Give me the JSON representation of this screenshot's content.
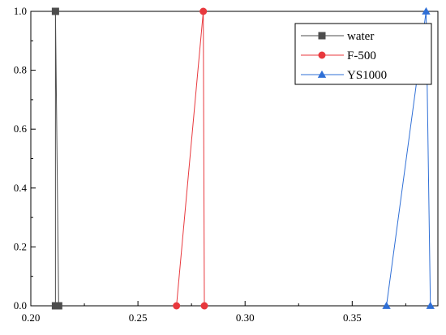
{
  "chart_data": {
    "type": "line",
    "title": "",
    "xlabel": "",
    "ylabel": "",
    "xlim": [
      0.2,
      0.39
    ],
    "ylim": [
      0.0,
      1.0
    ],
    "xticks": [
      0.2,
      0.25,
      0.3,
      0.35
    ],
    "yticks": [
      0.0,
      0.2,
      0.4,
      0.6,
      0.8,
      1.0
    ],
    "xtick_labels": [
      "0.20",
      "0.25",
      "0.30",
      "0.35"
    ],
    "ytick_labels": [
      "0.0",
      "0.2",
      "0.4",
      "0.6",
      "0.8",
      "1.0"
    ],
    "grid": false,
    "legend_position": "top-right",
    "series": [
      {
        "name": "water",
        "color": "#4d4d4d",
        "marker": "square",
        "points": [
          [
            0.2115,
            0.0
          ],
          [
            0.2115,
            1.0
          ],
          [
            0.213,
            0.0
          ]
        ]
      },
      {
        "name": "F-500",
        "color": "#e8383d",
        "marker": "circle",
        "points": [
          [
            0.268,
            0.0
          ],
          [
            0.2805,
            1.0
          ],
          [
            0.281,
            0.0
          ]
        ]
      },
      {
        "name": "YS1000",
        "color": "#2f6fd6",
        "marker": "triangle",
        "points": [
          [
            0.366,
            0.0
          ],
          [
            0.3845,
            1.0
          ],
          [
            0.3865,
            0.0
          ]
        ]
      }
    ]
  }
}
